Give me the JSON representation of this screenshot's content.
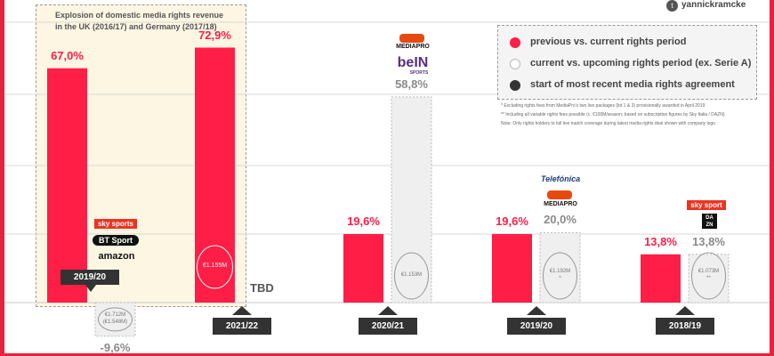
{
  "accent_color": "#ff1e46",
  "upcoming_color": "#efefef",
  "handle": "yannickramcke",
  "twitter_icon": "twitter-icon",
  "highlight_note": {
    "line1": "Explosion of domestic media rights revenue",
    "line2": "in the UK (2016/17) and Germany (2017/18)"
  },
  "legend": [
    {
      "label": "previous vs. current rights period",
      "color": "#ff1e46"
    },
    {
      "label": "current vs. upcoming rights period (ex. Serie A)",
      "color": "#ffffff"
    },
    {
      "label": "start of most recent media rights agreement",
      "color": "#333333"
    }
  ],
  "footnotes": [
    "*  Excluding rights fees from MediaPro's two live packages (lot 1 & 3) provisionally awarded in April 2019",
    "**  Including all variable rights fees possible (c. €100M/season; based on subscription figures by Sky Italia / DAZN)",
    "Note: Only rights holders to full live match coverage during latest media rights deal shown with company logo"
  ],
  "logos": {
    "skysports": "sky sports",
    "btsport": "BT Sport",
    "amazon": "amazon",
    "mediapro": "MEDIAPRO",
    "bein": "beIN",
    "bein_sub": "SPORTS",
    "telefonica": "Telefónica",
    "mediapro2": "MEDIAPRO",
    "skysport": "sky sport",
    "dazn": "DA ZN"
  },
  "chart_data": {
    "type": "bar",
    "ylim": [
      -15,
      80
    ],
    "groups": [
      {
        "period": "2019/20",
        "previous_change": "67,0%",
        "previous_value": 67.0,
        "upcoming_change": "-9,6%",
        "upcoming_value": -9.6,
        "upcoming_fee": "€1.712M\n(€1.548M)"
      },
      {
        "period": "2021/22",
        "previous_change": "72,9%",
        "previous_value": 72.9,
        "previous_fee": "€1.155M",
        "upcoming_label": "TBD"
      },
      {
        "period": "2020/21",
        "previous_change": "19,6%",
        "previous_value": 19.6,
        "upcoming_change": "58,8%",
        "upcoming_value": 58.8,
        "upcoming_fee": "€1.153M"
      },
      {
        "period": "2019/20",
        "previous_change": "19,6%",
        "previous_value": 19.6,
        "upcoming_change": "20,0%",
        "upcoming_value": 20.0,
        "upcoming_fee": "€1.192M\n*"
      },
      {
        "period": "2018/19",
        "previous_change": "13,8%",
        "previous_value": 13.8,
        "upcoming_change": "13,8%",
        "upcoming_value": 13.8,
        "upcoming_fee": "€1.073M\n**"
      }
    ]
  }
}
